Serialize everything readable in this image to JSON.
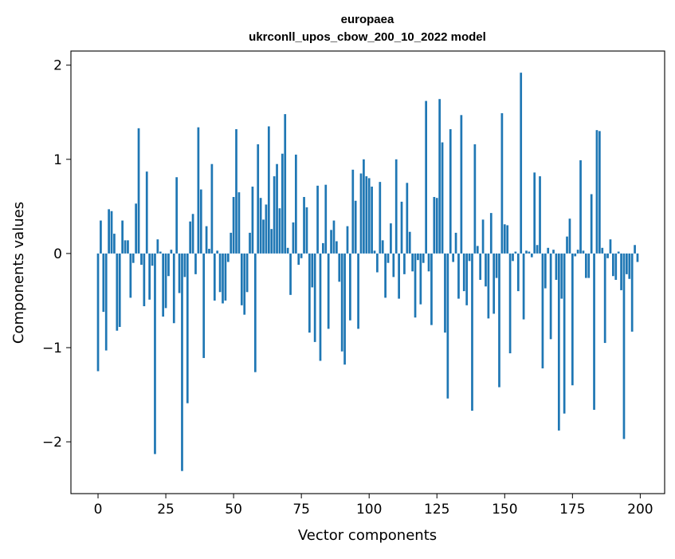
{
  "chart_data": {
    "type": "bar",
    "title": "europaea",
    "subtitle": "ukrconll_upos_cbow_200_10_2022 model",
    "xlabel": "Vector components",
    "ylabel": "Components values",
    "xlim": [
      -10,
      209
    ],
    "ylim": [
      -2.55,
      2.15
    ],
    "xticks": [
      0,
      25,
      50,
      75,
      100,
      125,
      150,
      175,
      200
    ],
    "yticks": [
      -2,
      -1,
      0,
      1,
      2
    ],
    "ytick_labels": [
      "−2",
      "−1",
      "0",
      "1",
      "2"
    ],
    "grid": false,
    "bar_color": "#1f77b4",
    "x": [
      0,
      1,
      2,
      3,
      4,
      5,
      6,
      7,
      8,
      9,
      10,
      11,
      12,
      13,
      14,
      15,
      16,
      17,
      18,
      19,
      20,
      21,
      22,
      23,
      24,
      25,
      26,
      27,
      28,
      29,
      30,
      31,
      32,
      33,
      34,
      35,
      36,
      37,
      38,
      39,
      40,
      41,
      42,
      43,
      44,
      45,
      46,
      47,
      48,
      49,
      50,
      51,
      52,
      53,
      54,
      55,
      56,
      57,
      58,
      59,
      60,
      61,
      62,
      63,
      64,
      65,
      66,
      67,
      68,
      69,
      70,
      71,
      72,
      73,
      74,
      75,
      76,
      77,
      78,
      79,
      80,
      81,
      82,
      83,
      84,
      85,
      86,
      87,
      88,
      89,
      90,
      91,
      92,
      93,
      94,
      95,
      96,
      97,
      98,
      99,
      100,
      101,
      102,
      103,
      104,
      105,
      106,
      107,
      108,
      109,
      110,
      111,
      112,
      113,
      114,
      115,
      116,
      117,
      118,
      119,
      120,
      121,
      122,
      123,
      124,
      125,
      126,
      127,
      128,
      129,
      130,
      131,
      132,
      133,
      134,
      135,
      136,
      137,
      138,
      139,
      140,
      141,
      142,
      143,
      144,
      145,
      146,
      147,
      148,
      149,
      150,
      151,
      152,
      153,
      154,
      155,
      156,
      157,
      158,
      159,
      160,
      161,
      162,
      163,
      164,
      165,
      166,
      167,
      168,
      169,
      170,
      171,
      172,
      173,
      174,
      175,
      176,
      177,
      178,
      179,
      180,
      181,
      182,
      183,
      184,
      185,
      186,
      187,
      188,
      189,
      190,
      191,
      192,
      193,
      194,
      195,
      196,
      197,
      198,
      199
    ],
    "values": [
      -1.25,
      0.35,
      -0.62,
      -1.03,
      0.47,
      0.45,
      0.21,
      -0.82,
      -0.78,
      0.35,
      0.14,
      0.14,
      -0.47,
      -0.1,
      0.53,
      1.33,
      -0.12,
      -0.56,
      0.87,
      -0.49,
      -0.13,
      -2.13,
      0.15,
      0.02,
      -0.67,
      -0.58,
      -0.24,
      0.04,
      -0.74,
      0.81,
      -0.42,
      -2.31,
      -0.25,
      -1.59,
      0.34,
      0.42,
      -0.22,
      1.34,
      0.68,
      -1.11,
      0.29,
      0.05,
      0.95,
      -0.5,
      0.03,
      -0.41,
      -0.53,
      -0.5,
      -0.09,
      0.22,
      0.6,
      1.32,
      0.65,
      -0.55,
      -0.65,
      -0.41,
      0.22,
      0.71,
      -1.26,
      1.16,
      0.59,
      0.36,
      0.52,
      1.35,
      0.26,
      0.82,
      0.95,
      0.48,
      1.06,
      1.48,
      0.06,
      -0.44,
      0.33,
      1.05,
      -0.12,
      -0.05,
      0.6,
      0.49,
      -0.84,
      -0.36,
      -0.94,
      0.72,
      -1.14,
      0.11,
      0.73,
      -0.8,
      0.25,
      0.35,
      0.13,
      -0.3,
      -1.04,
      -1.18,
      0.29,
      -0.71,
      0.89,
      0.56,
      -0.8,
      0.85,
      1.0,
      0.82,
      0.8,
      0.71,
      0.03,
      -0.2,
      0.76,
      0.14,
      -0.47,
      -0.1,
      0.32,
      -0.25,
      1.0,
      -0.48,
      0.55,
      -0.22,
      0.75,
      0.23,
      -0.19,
      -0.68,
      -0.07,
      -0.54,
      -0.1,
      1.62,
      -0.19,
      -0.76,
      0.6,
      0.59,
      1.64,
      1.18,
      -0.84,
      -1.54,
      1.32,
      -0.09,
      0.22,
      -0.48,
      1.47,
      -0.4,
      -0.55,
      -0.08,
      -1.67,
      1.16,
      0.08,
      -0.28,
      0.36,
      -0.35,
      -0.69,
      0.43,
      -0.64,
      -0.26,
      -1.42,
      1.49,
      0.31,
      0.3,
      -1.06,
      -0.08,
      0.02,
      -0.4,
      1.92,
      -0.7,
      0.03,
      0.02,
      -0.04,
      0.86,
      0.09,
      0.82,
      -1.22,
      -0.37,
      0.06,
      -0.91,
      0.04,
      -0.28,
      -1.88,
      -0.48,
      -1.7,
      0.18,
      0.37,
      -1.4,
      -0.03,
      0.04,
      0.99,
      0.03,
      -0.26,
      -0.26,
      0.63,
      -1.66,
      1.31,
      1.3,
      0.06,
      -0.95,
      -0.05,
      0.15,
      -0.24,
      -0.28,
      0.02,
      -0.39,
      -1.97,
      -0.22,
      -0.27,
      -0.83,
      0.09,
      -0.09
    ]
  }
}
